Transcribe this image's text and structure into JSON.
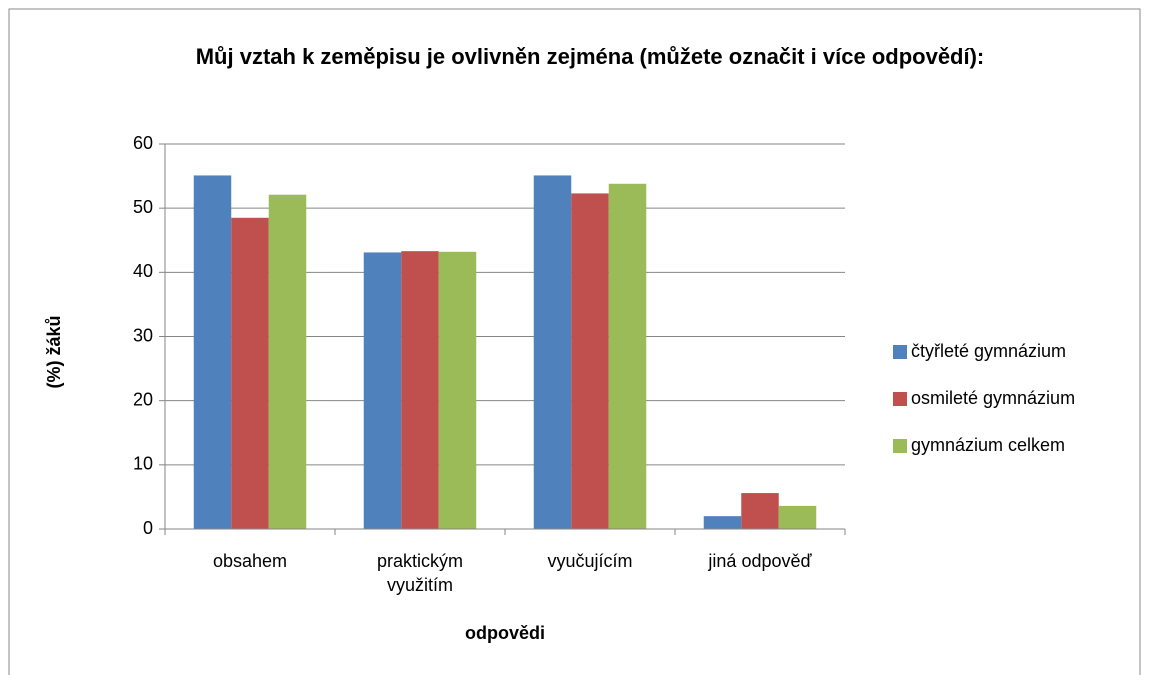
{
  "chart_data": {
    "type": "bar",
    "title": "Můj vztah k zeměpisu je ovlivněn zejména (můžete označit i více odpovědí):",
    "xlabel": "odpovědi",
    "ylabel": "(%) žáků",
    "categories": [
      "obsahem",
      "praktickým využitím",
      "vyučujícím",
      "jiná odpověď"
    ],
    "series": [
      {
        "name": "čtyřleté gymnázium",
        "color": "#4f81bd",
        "values": [
          55.1,
          43.1,
          55.1,
          2.0
        ]
      },
      {
        "name": "osmileté gymnázium",
        "color": "#c0504d",
        "values": [
          48.5,
          43.3,
          52.3,
          5.6
        ]
      },
      {
        "name": "gymnázium celkem",
        "color": "#9bbb59",
        "values": [
          52.1,
          43.2,
          53.8,
          3.6
        ]
      }
    ],
    "ylim": [
      0,
      60
    ],
    "yticks": [
      0,
      10,
      20,
      30,
      40,
      50,
      60
    ],
    "grid": true,
    "legend": "right"
  }
}
